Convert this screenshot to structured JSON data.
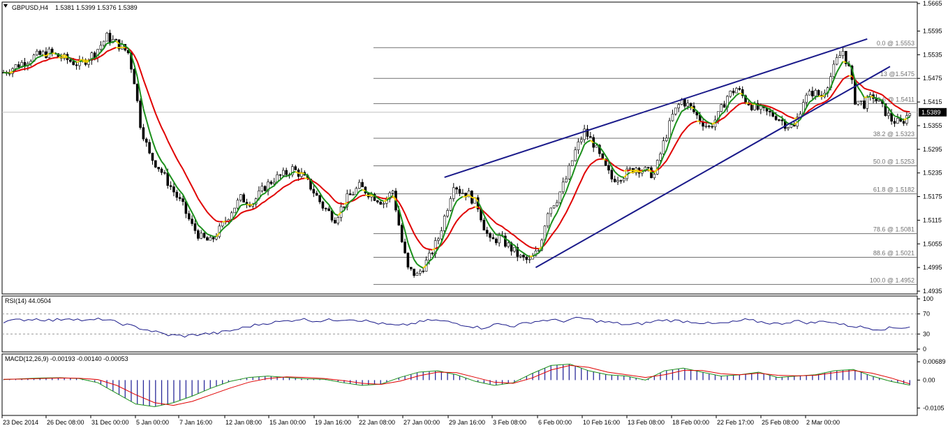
{
  "header": {
    "symbol": "GBPUSD,H4",
    "ohlc": "1.5381 1.5399 1.5376 1.5389",
    "current_price": "1.5389"
  },
  "panels": {
    "rsi_label": "RSI(14) 44.0504",
    "macd_label": "MACD(12,26,9) -0.00193 -0.00140 -0.00053"
  },
  "colors": {
    "up_candle": "#000000",
    "down_candle": "#000000",
    "ma_fast": "#1a8f1a",
    "ma_slow": "#e00000",
    "ma_flip": "#f0d000",
    "channel": "#1a1a8a",
    "fibo": "#707070",
    "rsi": "#1a1a8a",
    "macd_hist": "#2a2a9a",
    "macd_line": "#1a8f1a",
    "signal_line": "#e00000",
    "price_tag_bg": "#000000",
    "price_tag_fg": "#ffffff"
  },
  "chart_data": [
    {
      "type": "candlestick",
      "symbol": "GBPUSD",
      "timeframe": "H4",
      "ylim": [
        1.4935,
        1.5665
      ],
      "y_ticks": [
        "1.5665",
        "1.5595",
        "1.5535",
        "1.5475",
        "1.5415",
        "1.5355",
        "1.5295",
        "1.5235",
        "1.5175",
        "1.5115",
        "1.5055",
        "1.4995",
        "1.4935"
      ],
      "x_ticks": [
        "23 Dec 2014",
        "26 Dec 08:00",
        "31 Dec 00:00",
        "5 Jan 00:00",
        "7 Jan 16:00",
        "12 Jan 08:00",
        "15 Jan 00:00",
        "19 Jan 16:00",
        "22 Jan 08:00",
        "27 Jan 00:00",
        "29 Jan 16:00",
        "3 Feb 08:00",
        "6 Feb 00:00",
        "10 Feb 16:00",
        "13 Feb 08:00",
        "18 Feb 00:00",
        "22 Feb 17:00",
        "25 Feb 08:00",
        "2 Mar 00:00"
      ],
      "fibonacci": [
        {
          "label": "0.0 @ 1.5553",
          "value": 1.5553
        },
        {
          "label": "13 @1.5475",
          "value": 1.5475
        },
        {
          "label": "23.6 @ 1.5411",
          "value": 1.5411
        },
        {
          "label": "38.2 @ 1.5323",
          "value": 1.5323
        },
        {
          "label": "50.0 @ 1.5253",
          "value": 1.5253
        },
        {
          "label": "61.8 @ 1.5182",
          "value": 1.5182
        },
        {
          "label": "78.6 @ 1.5081",
          "value": 1.5081
        },
        {
          "label": "88.6 @ 1.5021",
          "value": 1.5021
        },
        {
          "label": "100.0 @ 1.4952",
          "value": 1.4952
        }
      ],
      "trend_channel": {
        "upper": [
          {
            "bar": 290,
            "price": 1.5224
          },
          {
            "bar": 568,
            "price": 1.5575
          }
        ],
        "lower": [
          {
            "bar": 350,
            "price": 1.4995
          },
          {
            "bar": 583,
            "price": 1.5505
          }
        ]
      },
      "price_path": [
        [
          0,
          1.549
        ],
        [
          10,
          1.551
        ],
        [
          20,
          1.553
        ],
        [
          30,
          1.554
        ],
        [
          40,
          1.5525
        ],
        [
          50,
          1.551
        ],
        [
          60,
          1.554
        ],
        [
          68,
          1.558
        ],
        [
          76,
          1.556
        ],
        [
          82,
          1.554
        ],
        [
          86,
          1.547
        ],
        [
          90,
          1.536
        ],
        [
          96,
          1.528
        ],
        [
          102,
          1.525
        ],
        [
          110,
          1.52
        ],
        [
          118,
          1.515
        ],
        [
          124,
          1.51
        ],
        [
          130,
          1.507
        ],
        [
          136,
          1.506
        ],
        [
          142,
          1.509
        ],
        [
          150,
          1.514
        ],
        [
          156,
          1.517
        ],
        [
          164,
          1.516
        ],
        [
          172,
          1.52
        ],
        [
          178,
          1.522
        ],
        [
          184,
          1.523
        ],
        [
          190,
          1.5245
        ],
        [
          196,
          1.523
        ],
        [
          202,
          1.52
        ],
        [
          210,
          1.515
        ],
        [
          218,
          1.512
        ],
        [
          226,
          1.517
        ],
        [
          234,
          1.52
        ],
        [
          242,
          1.518
        ],
        [
          250,
          1.516
        ],
        [
          256,
          1.519
        ],
        [
          262,
          1.506
        ],
        [
          266,
          1.499
        ],
        [
          272,
          1.4975
        ],
        [
          280,
          1.502
        ],
        [
          286,
          1.507
        ],
        [
          292,
          1.515
        ],
        [
          296,
          1.521
        ],
        [
          300,
          1.519
        ],
        [
          306,
          1.518
        ],
        [
          312,
          1.515
        ],
        [
          316,
          1.51
        ],
        [
          320,
          1.506
        ],
        [
          326,
          1.507
        ],
        [
          332,
          1.505
        ],
        [
          340,
          1.502
        ],
        [
          346,
          1.501
        ],
        [
          352,
          1.504
        ],
        [
          358,
          1.514
        ],
        [
          364,
          1.517
        ],
        [
          370,
          1.522
        ],
        [
          376,
          1.529
        ],
        [
          382,
          1.534
        ],
        [
          388,
          1.531
        ],
        [
          394,
          1.526
        ],
        [
          400,
          1.522
        ],
        [
          408,
          1.523
        ],
        [
          416,
          1.525
        ],
        [
          422,
          1.524
        ],
        [
          428,
          1.523
        ],
        [
          434,
          1.531
        ],
        [
          440,
          1.538
        ],
        [
          446,
          1.542
        ],
        [
          452,
          1.54
        ],
        [
          458,
          1.537
        ],
        [
          464,
          1.535
        ],
        [
          470,
          1.538
        ],
        [
          476,
          1.543
        ],
        [
          482,
          1.545
        ],
        [
          488,
          1.542
        ],
        [
          494,
          1.54
        ],
        [
          500,
          1.539
        ],
        [
          508,
          1.538
        ],
        [
          514,
          1.536
        ],
        [
          520,
          1.535
        ],
        [
          526,
          1.542
        ],
        [
          532,
          1.544
        ],
        [
          538,
          1.543
        ],
        [
          544,
          1.548
        ],
        [
          548,
          1.552
        ],
        [
          552,
          1.5545
        ],
        [
          556,
          1.55
        ],
        [
          560,
          1.542
        ],
        [
          566,
          1.541
        ],
        [
          572,
          1.543
        ],
        [
          578,
          1.54
        ],
        [
          584,
          1.537
        ],
        [
          590,
          1.536
        ],
        [
          596,
          1.5389
        ]
      ]
    },
    {
      "type": "line",
      "title": "RSI(14) 44.0504",
      "ylim": [
        0,
        100
      ],
      "y_ticks": [
        "100",
        "70",
        "30",
        "0"
      ],
      "levels": [
        70,
        30
      ],
      "series": [
        {
          "name": "RSI(14)",
          "values": [
            55,
            58,
            60,
            57,
            62,
            56,
            60,
            52,
            44,
            36,
            28,
            26,
            30,
            32,
            38,
            46,
            52,
            55,
            60,
            56,
            58,
            60,
            56,
            50,
            46,
            52,
            58,
            54,
            48,
            42,
            50,
            46,
            54,
            58,
            56,
            62,
            56,
            52,
            48,
            52,
            58,
            56,
            54,
            50,
            52,
            58,
            54,
            50,
            56,
            52,
            56,
            48,
            44,
            40,
            42,
            44
          ]
        }
      ]
    },
    {
      "type": "bar",
      "title": "MACD(12,26,9) -0.00193 -0.00140 -0.00053",
      "ylim": [
        -0.0125,
        0.0085
      ],
      "y_ticks": [
        "0.00689",
        "0.00",
        "-0.0105"
      ],
      "series": [
        {
          "name": "MACD(12,26,9)",
          "values": [
            0.0002,
            0.0005,
            0.0008,
            0.0009,
            0.0006,
            -0.001,
            -0.005,
            -0.009,
            -0.01,
            -0.0085,
            -0.006,
            -0.003,
            -0.0005,
            0.001,
            0.0015,
            0.001,
            0.0005,
            0.0003,
            -0.001,
            -0.002,
            -0.0015,
            0.001,
            0.003,
            0.0035,
            0.002,
            -0.0005,
            -0.002,
            -0.001,
            0.0025,
            0.0055,
            0.006,
            0.0035,
            0.002,
            0.0015,
            0.0,
            0.0035,
            0.0045,
            0.003,
            0.0015,
            0.002,
            0.003,
            0.001,
            0.0015,
            0.002,
            0.0035,
            0.004,
            0.0015,
            -0.0005,
            -0.0019
          ]
        },
        {
          "name": "Signal",
          "values": [
            0.0003,
            0.0004,
            0.0006,
            0.0008,
            0.0007,
            0.0002,
            -0.002,
            -0.0055,
            -0.0085,
            -0.0095,
            -0.008,
            -0.0055,
            -0.003,
            -0.0008,
            0.0006,
            0.0012,
            0.001,
            0.0006,
            -0.0002,
            -0.0012,
            -0.0016,
            -0.0004,
            0.0016,
            0.003,
            0.0028,
            0.001,
            -0.0008,
            -0.0012,
            0.0008,
            0.0038,
            0.0055,
            0.0048,
            0.003,
            0.002,
            0.001,
            0.002,
            0.0036,
            0.0036,
            0.0024,
            0.002,
            0.0026,
            0.0018,
            0.0016,
            0.0018,
            0.0028,
            0.0036,
            0.0026,
            0.0008,
            -0.0014
          ]
        }
      ]
    }
  ]
}
